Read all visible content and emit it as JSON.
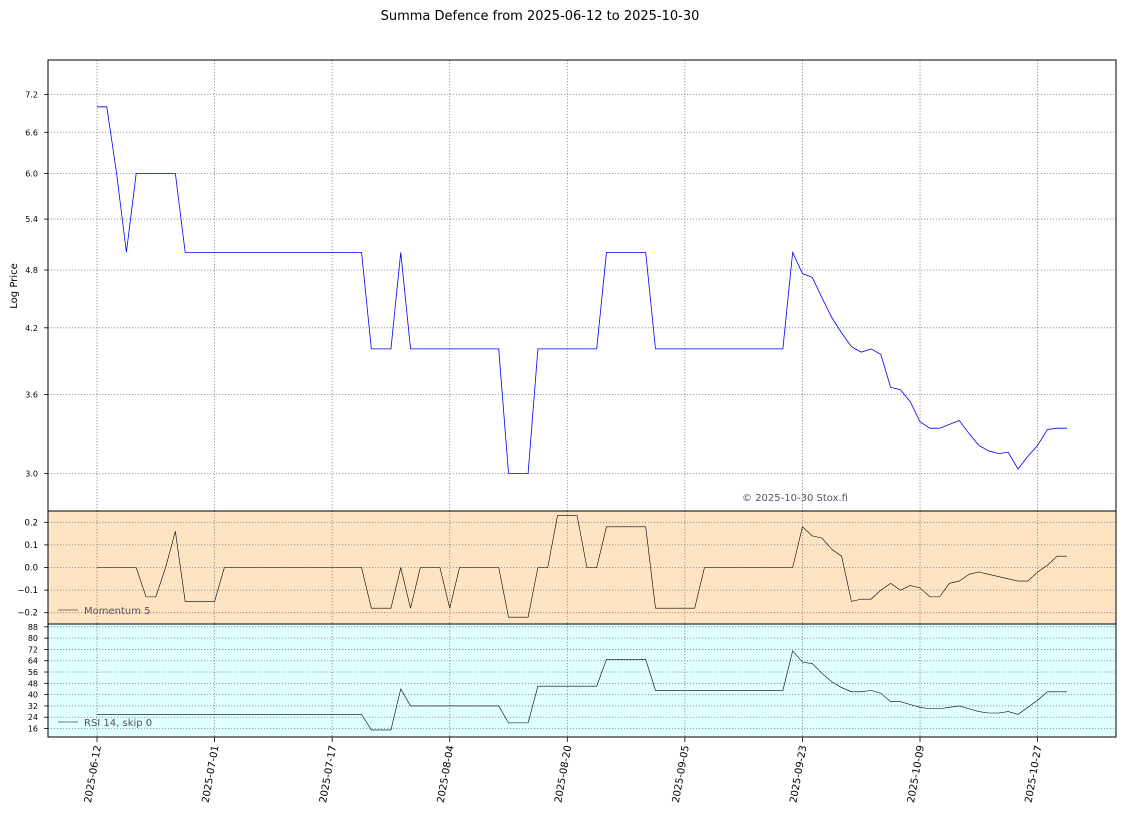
{
  "title": "Summa Defence from 2025-06-12 to 2025-10-30",
  "watermark": "© 2025-10-30 Stox.fi",
  "colors": {
    "price_line": "#0000ff",
    "indicator_line": "#000000",
    "momentum_bg": "#ffe4c4",
    "rsi_bg": "#e0ffff",
    "grid": "#808080",
    "legend_text": "#555555"
  },
  "x_dates": [
    "2025-06-12",
    "2025-07-01",
    "2025-07-17",
    "2025-08-04",
    "2025-08-20",
    "2025-09-05",
    "2025-09-23",
    "2025-10-09",
    "2025-10-27"
  ],
  "chart_data": [
    {
      "type": "line",
      "panel": "price",
      "ylabel": "Log Price",
      "scale": "log",
      "yticks": [
        3.0,
        3.6,
        4.2,
        4.8,
        5.4,
        6.0,
        6.6,
        7.2
      ],
      "ylim": [
        2.75,
        7.8
      ],
      "grid": true,
      "x": [
        0,
        1,
        2,
        3,
        4,
        5,
        6,
        7,
        8,
        9,
        10,
        11,
        12,
        13,
        14,
        15,
        16,
        17,
        18,
        19,
        20,
        21,
        22,
        23,
        24,
        25,
        26,
        27,
        28,
        29,
        30,
        31,
        32,
        33,
        34,
        35,
        36,
        37,
        38,
        39,
        40,
        41,
        42,
        43,
        44,
        45,
        46,
        47,
        48,
        49,
        50,
        51,
        52,
        53,
        54,
        55,
        56,
        57,
        58,
        59,
        60,
        61,
        62,
        63,
        64,
        65,
        66,
        67,
        68,
        69,
        70,
        71,
        72,
        73,
        74,
        75,
        76,
        77,
        78,
        79,
        80,
        81,
        82,
        83,
        84,
        85,
        86,
        87,
        88,
        89,
        90,
        91,
        92,
        93,
        94,
        95,
        96,
        97,
        98,
        99
      ],
      "values": [
        7.0,
        7.0,
        6.0,
        5.0,
        6.0,
        6.0,
        6.0,
        6.0,
        6.0,
        5.0,
        5.0,
        5.0,
        5.0,
        5.0,
        5.0,
        5.0,
        5.0,
        5.0,
        5.0,
        5.0,
        5.0,
        5.0,
        5.0,
        5.0,
        5.0,
        5.0,
        5.0,
        5.0,
        4.0,
        4.0,
        4.0,
        5.0,
        4.0,
        4.0,
        4.0,
        4.0,
        4.0,
        4.0,
        4.0,
        4.0,
        4.0,
        4.0,
        3.0,
        3.0,
        3.0,
        4.0,
        4.0,
        4.0,
        4.0,
        4.0,
        4.0,
        4.0,
        5.0,
        5.0,
        5.0,
        5.0,
        5.0,
        4.0,
        4.0,
        4.0,
        4.0,
        4.0,
        4.0,
        4.0,
        4.0,
        4.0,
        4.0,
        4.0,
        4.0,
        4.0,
        4.0,
        5.0,
        4.76,
        4.72,
        4.5,
        4.3,
        4.15,
        4.02,
        3.97,
        4.0,
        3.95,
        3.66,
        3.64,
        3.54,
        3.38,
        3.33,
        3.33,
        3.36,
        3.39,
        3.29,
        3.2,
        3.16,
        3.14,
        3.15,
        3.03,
        3.12,
        3.2,
        3.32,
        3.33,
        3.33
      ]
    },
    {
      "type": "line",
      "panel": "momentum",
      "legend": "Momentum 5",
      "yticks": [
        -0.2,
        -0.1,
        0.0,
        0.1,
        0.2
      ],
      "ylim": [
        -0.25,
        0.25
      ],
      "grid": true,
      "x": [
        0,
        1,
        2,
        3,
        4,
        5,
        6,
        7,
        8,
        9,
        10,
        11,
        12,
        13,
        14,
        15,
        16,
        17,
        18,
        19,
        20,
        21,
        22,
        23,
        24,
        25,
        26,
        27,
        28,
        29,
        30,
        31,
        32,
        33,
        34,
        35,
        36,
        37,
        38,
        39,
        40,
        41,
        42,
        43,
        44,
        45,
        46,
        47,
        48,
        49,
        50,
        51,
        52,
        53,
        54,
        55,
        56,
        57,
        58,
        59,
        60,
        61,
        62,
        63,
        64,
        65,
        66,
        67,
        68,
        69,
        70,
        71,
        72,
        73,
        74,
        75,
        76,
        77,
        78,
        79,
        80,
        81,
        82,
        83,
        84,
        85,
        86,
        87,
        88,
        89,
        90,
        91,
        92,
        93,
        94,
        95,
        96,
        97,
        98,
        99
      ],
      "values": [
        0.0,
        0.0,
        0.0,
        0.0,
        0.0,
        -0.13,
        -0.13,
        0.0,
        0.16,
        -0.15,
        -0.15,
        -0.15,
        -0.15,
        0.0,
        0.0,
        0.0,
        0.0,
        0.0,
        0.0,
        0.0,
        0.0,
        0.0,
        0.0,
        0.0,
        0.0,
        0.0,
        0.0,
        0.0,
        -0.18,
        -0.18,
        -0.18,
        0.0,
        -0.18,
        0.0,
        0.0,
        0.0,
        -0.18,
        0.0,
        0.0,
        0.0,
        0.0,
        0.0,
        -0.22,
        -0.22,
        -0.22,
        0.0,
        0.0,
        0.23,
        0.23,
        0.23,
        0.0,
        0.0,
        0.18,
        0.18,
        0.18,
        0.18,
        0.18,
        -0.18,
        -0.18,
        -0.18,
        -0.18,
        -0.18,
        0.0,
        0.0,
        0.0,
        0.0,
        0.0,
        0.0,
        0.0,
        0.0,
        0.0,
        0.0,
        0.18,
        0.14,
        0.13,
        0.08,
        0.05,
        -0.15,
        -0.14,
        -0.14,
        -0.1,
        -0.07,
        -0.1,
        -0.08,
        -0.09,
        -0.13,
        -0.13,
        -0.07,
        -0.06,
        -0.03,
        -0.02,
        -0.03,
        -0.04,
        -0.05,
        -0.06,
        -0.06,
        -0.02,
        0.01,
        0.05,
        0.05
      ]
    },
    {
      "type": "line",
      "panel": "rsi",
      "legend": "RSI 14, skip 0",
      "yticks": [
        16,
        24,
        32,
        40,
        48,
        56,
        64,
        72,
        80,
        88
      ],
      "ylim": [
        10,
        90
      ],
      "grid": true,
      "x": [
        0,
        1,
        2,
        3,
        4,
        5,
        6,
        7,
        8,
        9,
        10,
        11,
        12,
        13,
        14,
        15,
        16,
        17,
        18,
        19,
        20,
        21,
        22,
        23,
        24,
        25,
        26,
        27,
        28,
        29,
        30,
        31,
        32,
        33,
        34,
        35,
        36,
        37,
        38,
        39,
        40,
        41,
        42,
        43,
        44,
        45,
        46,
        47,
        48,
        49,
        50,
        51,
        52,
        53,
        54,
        55,
        56,
        57,
        58,
        59,
        60,
        61,
        62,
        63,
        64,
        65,
        66,
        67,
        68,
        69,
        70,
        71,
        72,
        73,
        74,
        75,
        76,
        77,
        78,
        79,
        80,
        81,
        82,
        83,
        84,
        85,
        86,
        87,
        88,
        89,
        90,
        91,
        92,
        93,
        94,
        95,
        96,
        97,
        98,
        99
      ],
      "values": [
        26,
        26,
        26,
        26,
        26,
        26,
        26,
        26,
        26,
        26,
        26,
        26,
        26,
        26,
        26,
        26,
        26,
        26,
        26,
        26,
        26,
        26,
        26,
        26,
        26,
        26,
        26,
        26,
        15,
        15,
        15,
        44,
        32,
        32,
        32,
        32,
        32,
        32,
        32,
        32,
        32,
        32,
        20,
        20,
        20,
        46,
        46,
        46,
        46,
        46,
        46,
        46,
        65,
        65,
        65,
        65,
        65,
        43,
        43,
        43,
        43,
        43,
        43,
        43,
        43,
        43,
        43,
        43,
        43,
        43,
        43,
        71,
        63,
        62,
        55,
        49,
        45,
        42,
        42,
        43,
        41,
        35,
        35,
        33,
        31,
        30,
        30,
        31,
        32,
        30,
        28,
        27,
        27,
        28,
        26,
        31,
        36,
        42,
        42,
        42
      ]
    }
  ]
}
